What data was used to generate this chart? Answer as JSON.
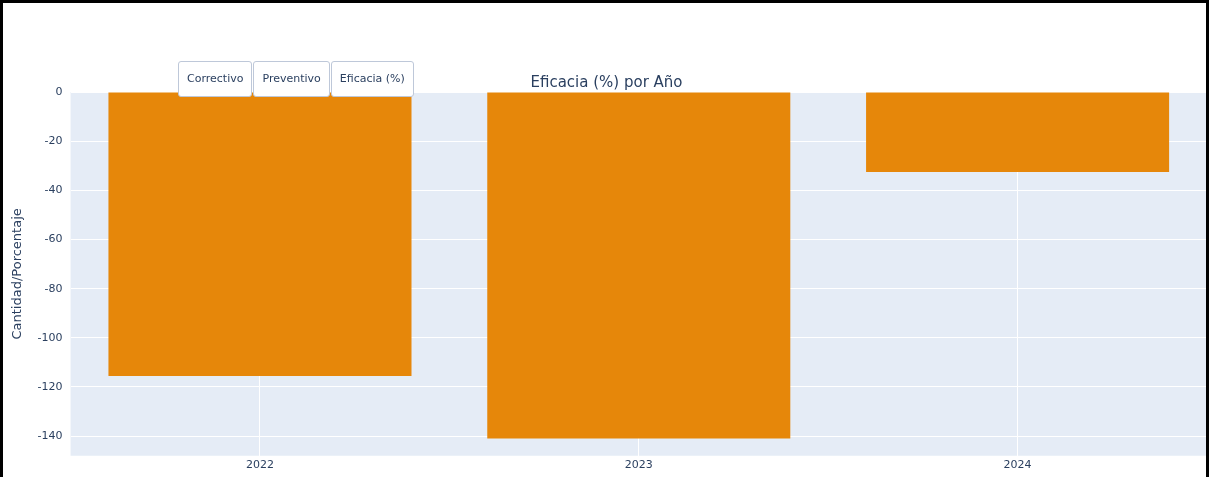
{
  "chart_data": {
    "type": "bar",
    "title": "Eficacia (%) por Año",
    "ylabel": "Cantidad/Porcentaje",
    "categories": [
      "2022",
      "2023",
      "2024"
    ],
    "values": [
      -115.5,
      -141,
      -32.5
    ],
    "color": "#e6870a",
    "ylim": [
      -148,
      0
    ],
    "yticks": [
      -140,
      -120,
      -100,
      -80,
      -60,
      -40,
      -20,
      0
    ],
    "grid": true,
    "annotations": [
      "Correctivo",
      "Preventivo",
      "Eficacia (%)"
    ]
  }
}
